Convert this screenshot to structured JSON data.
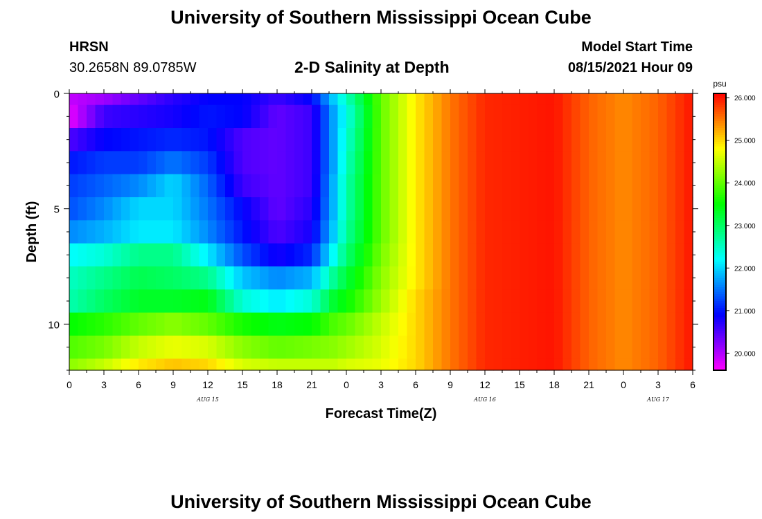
{
  "header": {
    "title": "University of Southern Mississippi Ocean Cube",
    "station": "HRSN",
    "coordinates": "30.2658N  89.0785W",
    "subtitle": "2-D Salinity at Depth",
    "model_start_label": "Model Start Time",
    "model_start_value": "08/15/2021 Hour 09",
    "footer_title": "University of Southern Mississippi Ocean Cube"
  },
  "chart_data": {
    "type": "heatmap",
    "title": "2-D Salinity at Depth",
    "xlabel": "Forecast Time(Z)",
    "ylabel": "Depth (ft)",
    "x_tick_labels": [
      "0",
      "3",
      "6",
      "9",
      "12",
      "15",
      "18",
      "21",
      "0",
      "3",
      "6",
      "9",
      "12",
      "15",
      "18",
      "21",
      "0",
      "3",
      "6"
    ],
    "xlim_hours": [
      0,
      54
    ],
    "date_labels": [
      {
        "label": "AUG 15",
        "hour": 12
      },
      {
        "label": "AUG 16",
        "hour": 36
      },
      {
        "label": "AUG 17",
        "hour": 51
      }
    ],
    "y_ticks": [
      0,
      5,
      10
    ],
    "ylim_ft": [
      0,
      12
    ],
    "z_unit": "psu",
    "zlim": [
      19.6,
      26.1
    ],
    "colorbar_ticks": [
      "20.000",
      "21.000",
      "22.000",
      "23.000",
      "24.000",
      "25.000",
      "26.000"
    ],
    "colorbar_tick_values": [
      20,
      21,
      22,
      23,
      24,
      25,
      26
    ],
    "depth_levels_ft": [
      0,
      1,
      2,
      3,
      4,
      5,
      6,
      7,
      8,
      9,
      10,
      11,
      12
    ],
    "salinity_profiles": [
      {
        "hour": 0,
        "psu": [
          19.9,
          19.7,
          20.5,
          21.0,
          21.2,
          21.3,
          21.6,
          22.2,
          22.5,
          22.6,
          23.5,
          23.9,
          24.2
        ]
      },
      {
        "hour": 3,
        "psu": [
          20.1,
          20.6,
          20.9,
          21.2,
          21.4,
          21.6,
          21.8,
          22.4,
          22.8,
          23.0,
          23.7,
          24.1,
          24.5
        ]
      },
      {
        "hour": 6,
        "psu": [
          20.4,
          20.7,
          21.0,
          21.2,
          21.6,
          22.0,
          22.1,
          22.8,
          23.1,
          23.3,
          24.0,
          24.5,
          24.9
        ]
      },
      {
        "hour": 9,
        "psu": [
          20.7,
          20.8,
          21.1,
          21.5,
          22.0,
          22.0,
          22.1,
          22.8,
          23.0,
          23.3,
          24.2,
          24.7,
          25.1
        ]
      },
      {
        "hour": 12,
        "psu": [
          20.9,
          21.0,
          21.0,
          21.2,
          21.4,
          21.5,
          21.6,
          22.1,
          22.8,
          23.4,
          24.0,
          24.6,
          25.0
        ]
      },
      {
        "hour": 15,
        "psu": [
          20.9,
          20.9,
          20.5,
          20.5,
          20.6,
          20.9,
          21.0,
          21.3,
          21.9,
          22.4,
          23.6,
          24.2,
          24.6
        ]
      },
      {
        "hour": 18,
        "psu": [
          20.6,
          20.4,
          20.4,
          20.4,
          20.4,
          20.4,
          20.5,
          20.8,
          21.6,
          22.1,
          23.4,
          24.0,
          24.5
        ]
      },
      {
        "hour": 21,
        "psu": [
          20.9,
          20.6,
          20.6,
          20.6,
          20.6,
          20.7,
          20.8,
          21.1,
          21.8,
          22.4,
          23.5,
          24.1,
          24.5
        ]
      },
      {
        "hour": 23,
        "psu": [
          22.0,
          21.8,
          21.8,
          21.8,
          21.9,
          21.9,
          22.0,
          22.3,
          22.8,
          23.3,
          23.9,
          24.2,
          24.5
        ]
      },
      {
        "hour": 24,
        "psu": [
          22.5,
          22.3,
          22.4,
          22.5,
          22.6,
          22.6,
          22.7,
          22.9,
          23.2,
          23.5,
          24.0,
          24.3,
          24.6
        ]
      },
      {
        "hour": 27,
        "psu": [
          24.0,
          24.0,
          24.0,
          24.0,
          24.0,
          24.0,
          24.0,
          24.1,
          24.2,
          24.3,
          24.5,
          24.6,
          24.7
        ]
      },
      {
        "hour": 30,
        "psu": [
          24.9,
          24.9,
          24.9,
          24.9,
          24.9,
          24.9,
          24.9,
          24.9,
          24.9,
          25.0,
          25.0,
          25.0,
          25.0
        ]
      },
      {
        "hour": 33,
        "psu": [
          25.5,
          25.5,
          25.5,
          25.5,
          25.5,
          25.5,
          25.5,
          25.5,
          25.5,
          25.5,
          25.5,
          25.5,
          25.5
        ]
      },
      {
        "hour": 36,
        "psu": [
          25.9,
          25.9,
          25.9,
          25.9,
          25.9,
          25.9,
          25.9,
          25.9,
          25.9,
          25.9,
          25.9,
          25.9,
          25.9
        ]
      },
      {
        "hour": 42,
        "psu": [
          26.0,
          26.0,
          26.0,
          26.0,
          26.0,
          26.0,
          26.0,
          26.0,
          26.0,
          26.0,
          26.0,
          26.0,
          26.0
        ]
      },
      {
        "hour": 45,
        "psu": [
          25.6,
          25.6,
          25.6,
          25.6,
          25.6,
          25.6,
          25.6,
          25.6,
          25.6,
          25.6,
          25.6,
          25.6,
          25.6
        ]
      },
      {
        "hour": 48,
        "psu": [
          25.4,
          25.4,
          25.4,
          25.4,
          25.4,
          25.4,
          25.4,
          25.4,
          25.4,
          25.4,
          25.4,
          25.4,
          25.4
        ]
      },
      {
        "hour": 51,
        "psu": [
          25.6,
          25.6,
          25.6,
          25.6,
          25.6,
          25.6,
          25.6,
          25.6,
          25.6,
          25.6,
          25.6,
          25.6,
          25.6
        ]
      },
      {
        "hour": 54,
        "psu": [
          26.0,
          26.0,
          26.0,
          26.0,
          26.0,
          26.0,
          26.0,
          26.0,
          26.0,
          26.0,
          26.0,
          26.0,
          26.0
        ]
      }
    ]
  }
}
